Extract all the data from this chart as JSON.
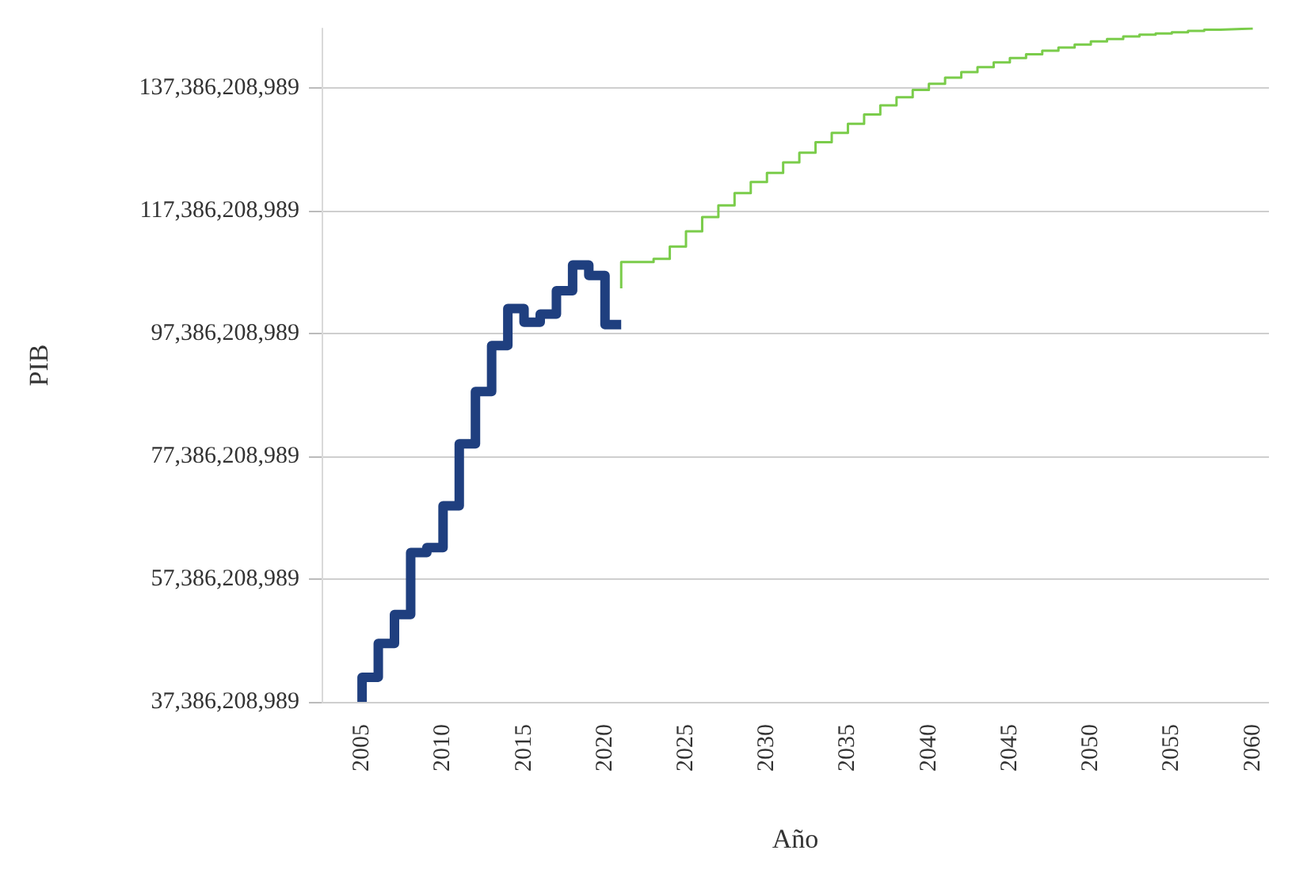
{
  "chart_data": {
    "type": "step",
    "xlabel": "Año",
    "ylabel": "PIB",
    "xlim": [
      2002.5,
      2061
    ],
    "xticks": [
      2005,
      2010,
      2015,
      2020,
      2025,
      2030,
      2035,
      2040,
      2045,
      2050,
      2055,
      2060
    ],
    "ylim": [
      37386208989,
      147000000000
    ],
    "yticks": [
      {
        "value": 37386208989,
        "label": "37,386,208,989"
      },
      {
        "value": 57386208989,
        "label": "57,386,208,989"
      },
      {
        "value": 77386208989,
        "label": "77,386,208,989"
      },
      {
        "value": 97386208989,
        "label": "97,386,208,989"
      },
      {
        "value": 117386208989,
        "label": "117,386,208,989"
      },
      {
        "value": 137386208989,
        "label": "137,386,208,989"
      }
    ],
    "grid": "y",
    "series": [
      {
        "color": "#1f3f7f",
        "x": [
          2005,
          2006,
          2007,
          2008,
          2009,
          2010,
          2011,
          2012,
          2013,
          2014,
          2015,
          2016,
          2017,
          2018,
          2019,
          2020,
          2021
        ],
        "values": [
          37400000000,
          41400000000,
          46900000000,
          51600000000,
          61700000000,
          62500000000,
          69300000000,
          79400000000,
          87900000000,
          95400000000,
          101400000000,
          99200000000,
          100500000000,
          104300000000,
          108500000000,
          106800000000,
          98800000000
        ]
      },
      {
        "color": "#7acc4a",
        "x": [
          2021,
          2022,
          2023,
          2024,
          2025,
          2026,
          2027,
          2028,
          2029,
          2030,
          2031,
          2032,
          2033,
          2034,
          2035,
          2036,
          2037,
          2038,
          2039,
          2040,
          2041,
          2042,
          2043,
          2044,
          2045,
          2046,
          2047,
          2048,
          2049,
          2050,
          2051,
          2052,
          2053,
          2054,
          2055,
          2056,
          2057,
          2058,
          2059,
          2060
        ],
        "values": [
          104700000000,
          109000000000,
          109000000000,
          109500000000,
          111500000000,
          114000000000,
          116300000000,
          118200000000,
          120200000000,
          122000000000,
          123500000000,
          125200000000,
          126800000000,
          128500000000,
          130000000000,
          131500000000,
          133000000000,
          134500000000,
          135800000000,
          137000000000,
          138000000000,
          139000000000,
          139900000000,
          140700000000,
          141500000000,
          142200000000,
          142800000000,
          143400000000,
          143900000000,
          144400000000,
          144900000000,
          145300000000,
          145700000000,
          146000000000,
          146200000000,
          146400000000,
          146600000000,
          146800000000,
          146900000000,
          147000000000
        ]
      }
    ]
  }
}
